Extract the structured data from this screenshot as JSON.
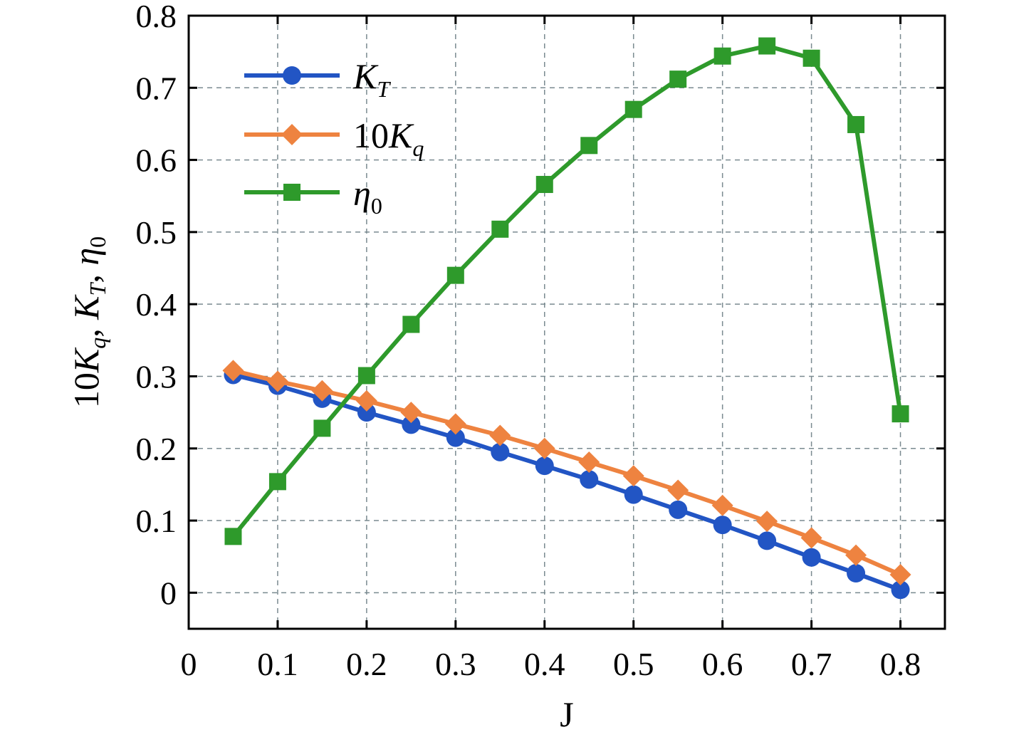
{
  "chart_data": {
    "type": "line",
    "xlabel": "J",
    "ylabel": {
      "parts": [
        "10",
        "K",
        "q",
        ", ",
        "K",
        "T",
        ", ",
        "η",
        "0"
      ],
      "text": "10Kq, KT, η0"
    },
    "xlim": [
      0,
      0.85
    ],
    "ylim": [
      -0.05,
      0.8
    ],
    "x_ticks": [
      0,
      0.1,
      0.2,
      0.3,
      0.4,
      0.5,
      0.6,
      0.7,
      0.8
    ],
    "x_tick_labels": [
      "0",
      "0.1",
      "0.2",
      "0.3",
      "0.4",
      "0.5",
      "0.6",
      "0.7",
      "0.8"
    ],
    "y_ticks": [
      0,
      0.1,
      0.2,
      0.3,
      0.4,
      0.5,
      0.6,
      0.7,
      0.8
    ],
    "y_tick_labels": [
      "0",
      "0.1",
      "0.2",
      "0.3",
      "0.4",
      "0.5",
      "0.6",
      "0.7",
      "0.8"
    ],
    "grid": true,
    "legend_position": "top-left",
    "x": [
      0.05,
      0.1,
      0.15,
      0.2,
      0.25,
      0.3,
      0.35,
      0.4,
      0.45,
      0.5,
      0.55,
      0.6,
      0.65,
      0.7,
      0.75,
      0.8
    ],
    "series": [
      {
        "name": "K_T",
        "label_main": "K",
        "label_sub": "T",
        "label_prefix": "",
        "color": "#2255c4",
        "marker": "circle",
        "values": [
          0.302,
          0.287,
          0.269,
          0.25,
          0.233,
          0.215,
          0.195,
          0.176,
          0.157,
          0.136,
          0.115,
          0.094,
          0.072,
          0.049,
          0.027,
          0.004
        ]
      },
      {
        "name": "10K_q",
        "label_main": "K",
        "label_sub": "q",
        "label_prefix": "10",
        "color": "#ee8340",
        "marker": "diamond",
        "values": [
          0.308,
          0.293,
          0.28,
          0.266,
          0.25,
          0.234,
          0.218,
          0.2,
          0.181,
          0.162,
          0.142,
          0.121,
          0.099,
          0.076,
          0.052,
          0.025
        ]
      },
      {
        "name": "η_0",
        "label_main": "η",
        "label_sub": "0",
        "label_prefix": "",
        "color": "#2e9a2b",
        "marker": "square",
        "values": [
          0.078,
          0.154,
          0.228,
          0.301,
          0.372,
          0.44,
          0.504,
          0.566,
          0.62,
          0.67,
          0.712,
          0.744,
          0.758,
          0.741,
          0.649,
          0.248
        ]
      }
    ]
  }
}
